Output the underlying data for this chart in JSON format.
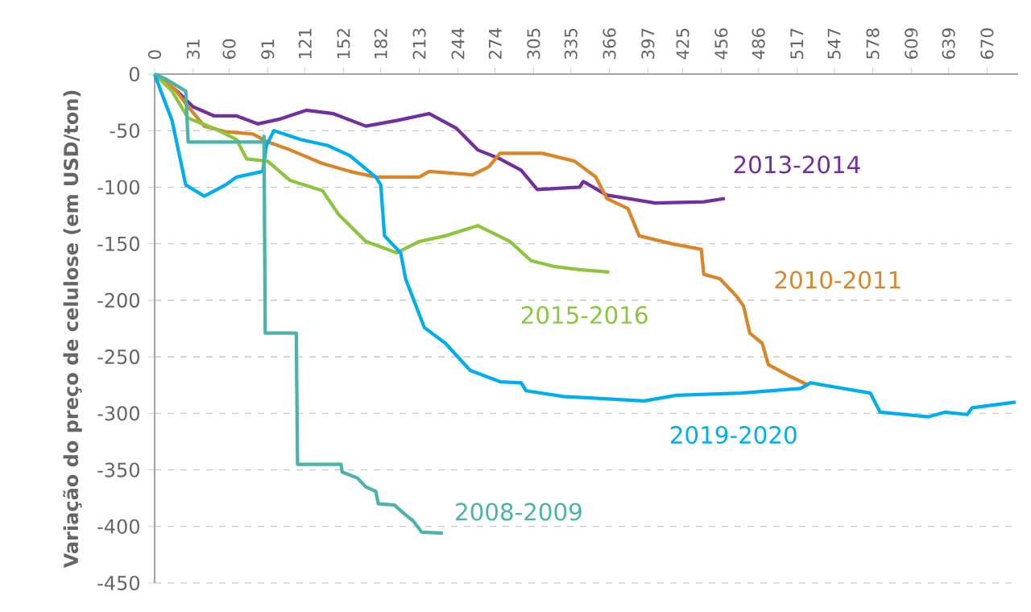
{
  "chart_data": {
    "type": "line",
    "ylabel": "Variação do preço de celulose (em USD/ton)",
    "xlim": [
      0,
      695
    ],
    "ylim": [
      -450,
      0
    ],
    "xticks": [
      0,
      31,
      60,
      91,
      121,
      152,
      182,
      213,
      244,
      274,
      305,
      335,
      366,
      397,
      425,
      456,
      486,
      517,
      547,
      578,
      609,
      639,
      670
    ],
    "yticks": [
      -450,
      -400,
      -350,
      -300,
      -250,
      -200,
      -150,
      -100,
      -50,
      0
    ],
    "grid": "y",
    "legend": false,
    "marker": "none",
    "line_style": "solid",
    "series": [
      {
        "name": "2013-2014",
        "color": "#7030a0",
        "x": [
          0,
          18,
          31,
          48,
          66,
          83,
          100,
          122,
          144,
          170,
          195,
          221,
          243,
          260,
          278,
          295,
          308,
          342,
          345,
          364,
          403,
          442,
          459
        ],
        "values": [
          0,
          -15,
          -29,
          -37,
          -37,
          -44,
          -40,
          -32,
          -35,
          -46,
          -41,
          -35,
          -48,
          -67,
          -75,
          -85,
          -102,
          -100,
          -95,
          -107,
          -114,
          -113,
          -110
        ]
      },
      {
        "name": "2010-2011",
        "color": "#d9862b",
        "x": [
          0,
          16,
          27,
          40,
          57,
          79,
          91,
          109,
          135,
          157,
          178,
          213,
          221,
          256,
          269,
          278,
          312,
          338,
          355,
          364,
          381,
          390,
          416,
          440,
          442,
          455,
          468,
          474,
          479,
          489,
          494,
          511,
          526
        ],
        "values": [
          0,
          -13,
          -29,
          -46,
          -51,
          -53,
          -60,
          -67,
          -79,
          -86,
          -91,
          -91,
          -86,
          -89,
          -82,
          -70,
          -70,
          -77,
          -91,
          -110,
          -119,
          -143,
          -150,
          -155,
          -177,
          -181,
          -196,
          -205,
          -229,
          -238,
          -257,
          -267,
          -275
        ]
      },
      {
        "name": "2015-2016",
        "color": "#8cc63f",
        "x": [
          0,
          14,
          27,
          48,
          66,
          74,
          91,
          109,
          135,
          148,
          170,
          195,
          213,
          234,
          260,
          286,
          303,
          321,
          342,
          366
        ],
        "values": [
          0,
          -15,
          -39,
          -48,
          -58,
          -75,
          -77,
          -94,
          -103,
          -124,
          -148,
          -158,
          -148,
          -143,
          -134,
          -148,
          -165,
          -170,
          -173,
          -175
        ]
      },
      {
        "name": "2019-2020",
        "color": "#00aeef",
        "x": [
          0,
          5,
          14,
          25,
          40,
          57,
          66,
          87,
          90,
          96,
          118,
          139,
          157,
          178,
          182,
          185,
          198,
          202,
          217,
          234,
          254,
          278,
          295,
          299,
          329,
          394,
          420,
          472,
          520,
          528,
          576,
          584,
          623,
          636,
          654,
          658,
          693
        ],
        "values": [
          0,
          -15,
          -41,
          -98,
          -108,
          -98,
          -91,
          -86,
          -63,
          -50,
          -58,
          -63,
          -72,
          -91,
          -98,
          -143,
          -158,
          -181,
          -224,
          -238,
          -262,
          -272,
          -273,
          -280,
          -285,
          -289,
          -284,
          -282,
          -278,
          -273,
          -282,
          -299,
          -303,
          -299,
          -301,
          -295,
          -290
        ]
      },
      {
        "name": "2008-2009",
        "color": "#4bb3a7",
        "x": [
          0,
          10,
          25,
          27,
          87,
          88,
          89,
          114,
          115,
          150,
          151,
          163,
          170,
          178,
          180,
          193,
          200,
          208,
          215,
          232
        ],
        "values": [
          0,
          -5,
          -15,
          -60,
          -60,
          -55,
          -229,
          -229,
          -345,
          -345,
          -352,
          -357,
          -365,
          -369,
          -380,
          -381,
          -388,
          -395,
          -405,
          -406
        ]
      }
    ]
  }
}
